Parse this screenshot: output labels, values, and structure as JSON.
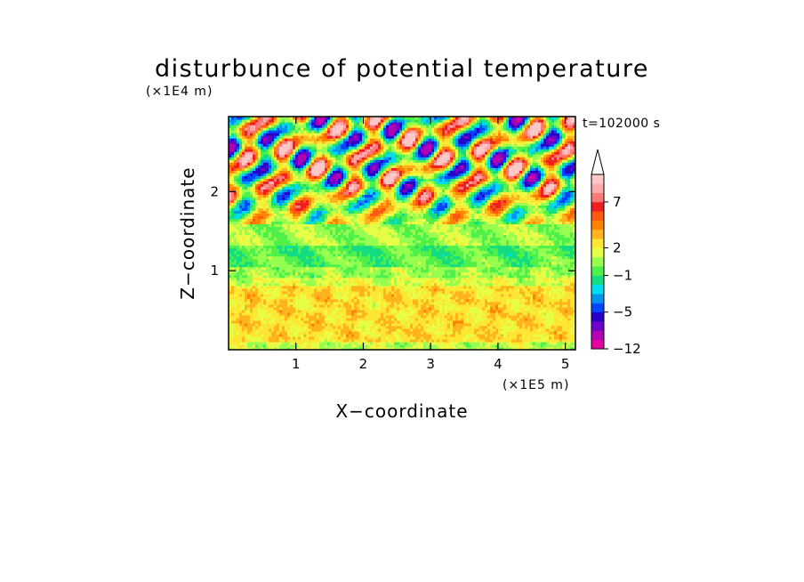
{
  "chart_data": {
    "type": "heatmap",
    "title": "disturbunce of potential temperature",
    "xlabel": "X−coordinate",
    "ylabel": "Z−coordinate",
    "x_unit": "(×1E5 m)",
    "y_unit": "(×1E4 m)",
    "annotation": "t=102000 s",
    "xlim": [
      0,
      5.15
    ],
    "ylim": [
      0,
      2.95
    ],
    "x_ticks": [
      1,
      2,
      3,
      4,
      5
    ],
    "x_tick_labels": [
      "1",
      "2",
      "3",
      "4",
      "5"
    ],
    "y_ticks": [
      1,
      2
    ],
    "y_tick_labels": [
      "1",
      "2"
    ],
    "colorbar": {
      "levels": [
        -12,
        -10,
        -8,
        -6.5,
        -5,
        -4,
        -3,
        -2,
        -1,
        0,
        1,
        2,
        3,
        4,
        5,
        6,
        7,
        8,
        9,
        10
      ],
      "labels": [
        {
          "value": -12,
          "text": "−12"
        },
        {
          "value": -5,
          "text": "−5"
        },
        {
          "value": -1,
          "text": "−1"
        },
        {
          "value": 2,
          "text": "2"
        },
        {
          "value": 7,
          "text": "7"
        }
      ],
      "colors": [
        "#e600a0",
        "#b400b4",
        "#6e00c8",
        "#2800c8",
        "#0046ff",
        "#0096f0",
        "#00dcf0",
        "#14dc82",
        "#50f04b",
        "#96ff50",
        "#e6ff46",
        "#ffe632",
        "#ffb41e",
        "#ff8200",
        "#ff5a14",
        "#f01e1e",
        "#ff7878",
        "#ffaaaa",
        "#ffc8c8"
      ],
      "extend": "max"
    },
    "field_description": "banded structure: yellow/orange low levels, green-cyan band near z=1, mixed warm/cold wave patterns aloft",
    "bands": [
      {
        "z_range": [
          0.0,
          0.1
        ],
        "value": 1.0
      },
      {
        "z_range": [
          0.1,
          0.8
        ],
        "value": 2.6
      },
      {
        "z_range": [
          0.8,
          0.92
        ],
        "value": 1.4
      },
      {
        "z_range": [
          0.92,
          1.05
        ],
        "value": 0.5
      },
      {
        "z_range": [
          1.05,
          1.2
        ],
        "value": -0.3
      },
      {
        "z_range": [
          1.2,
          1.32
        ],
        "value": -0.6
      },
      {
        "z_range": [
          1.32,
          1.6
        ],
        "value": 0.6
      },
      {
        "z_range": [
          1.6,
          2.95
        ],
        "value": 2.0
      }
    ]
  }
}
